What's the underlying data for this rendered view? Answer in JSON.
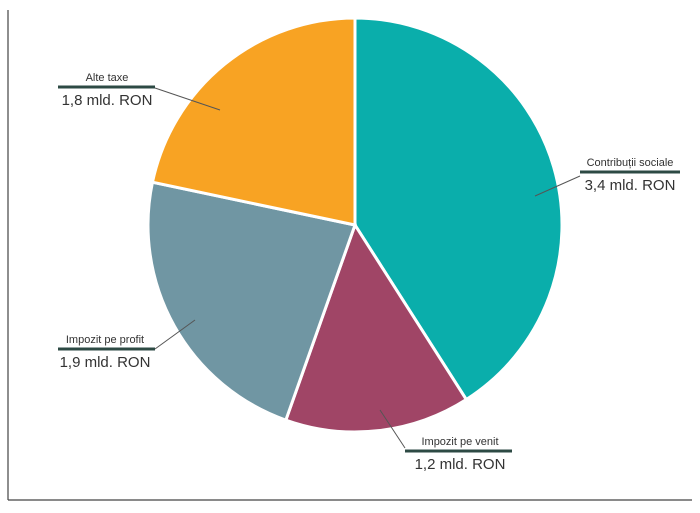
{
  "chart_data": {
    "type": "pie",
    "categories": [
      "Contribuții sociale",
      "Impozit pe venit",
      "Impozit pe profit",
      "Alte taxe"
    ],
    "values": [
      3.4,
      1.2,
      1.9,
      1.8
    ],
    "value_labels": [
      "3,4 mld. RON",
      "1,2 mld. RON",
      "1,9 mld. RON",
      "1,8 mld. RON"
    ],
    "colors": [
      "#0aaeab",
      "#a04566",
      "#7096a3",
      "#f8a323"
    ]
  }
}
